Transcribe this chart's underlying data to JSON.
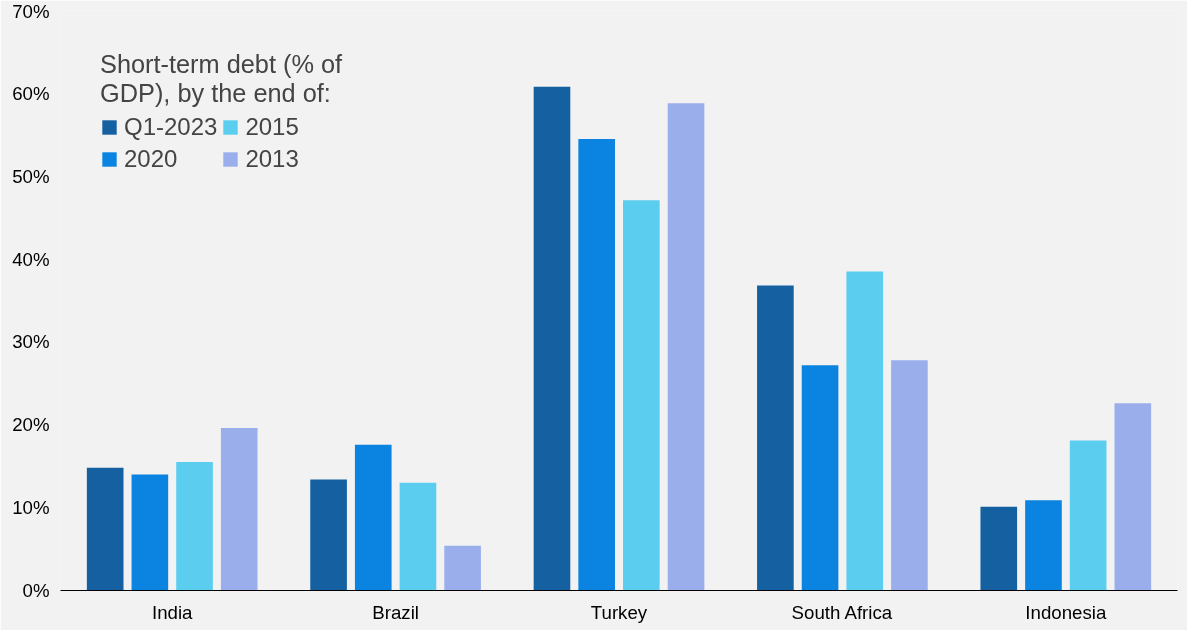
{
  "chart_data": {
    "type": "bar",
    "legend_title": "Short-term debt (% of GDP), by the end of:",
    "categories": [
      "India",
      "Brazil",
      "Turkey",
      "South Africa",
      "Indonesia"
    ],
    "series": [
      {
        "name": "Q1-2023",
        "color": "#1560a0",
        "values": [
          14.8,
          13.4,
          60.8,
          36.8,
          10.1
        ]
      },
      {
        "name": "2020",
        "color": "#0a84e0",
        "values": [
          14.0,
          17.6,
          54.5,
          27.2,
          10.9
        ]
      },
      {
        "name": "2015",
        "color": "#5bcdee",
        "values": [
          15.5,
          13.0,
          47.1,
          38.5,
          18.1
        ]
      },
      {
        "name": "2013",
        "color": "#9aaeec",
        "values": [
          19.6,
          5.4,
          58.8,
          27.8,
          22.6
        ]
      }
    ],
    "ylim": [
      0,
      70
    ],
    "yticks": [
      {
        "value": 0,
        "label": "0%"
      },
      {
        "value": 10,
        "label": "10%"
      },
      {
        "value": 20,
        "label": "20%"
      },
      {
        "value": 30,
        "label": "30%"
      },
      {
        "value": 40,
        "label": "40%"
      },
      {
        "value": 50,
        "label": "50%"
      },
      {
        "value": 60,
        "label": "60%"
      },
      {
        "value": 70,
        "label": "70%"
      }
    ],
    "grid": false,
    "legend": "top left"
  }
}
